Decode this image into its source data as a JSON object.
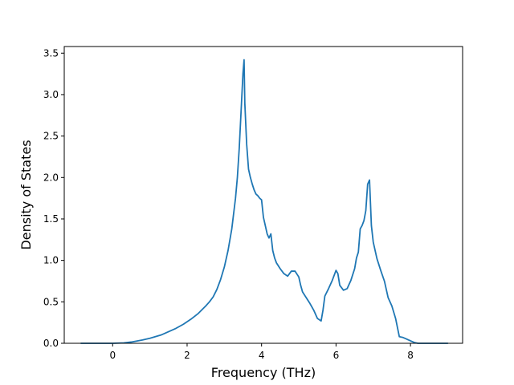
{
  "chart_data": {
    "type": "line",
    "title": "",
    "xlabel": "Frequency (THz)",
    "ylabel": "Density of States",
    "xlim": [
      -1.3,
      9.4
    ],
    "ylim": [
      0,
      3.58
    ],
    "xticks": [
      0,
      2,
      4,
      6,
      8
    ],
    "yticks": [
      0.0,
      0.5,
      1.0,
      1.5,
      2.0,
      2.5,
      3.0,
      3.5
    ],
    "xtick_labels": [
      "0",
      "2",
      "4",
      "6",
      "8"
    ],
    "ytick_labels": [
      "0.0",
      "0.5",
      "1.0",
      "1.5",
      "2.0",
      "2.5",
      "3.0",
      "3.5"
    ],
    "grid": false,
    "series": [
      {
        "color": "#1f77b4",
        "x": [
          -0.85,
          -0.5,
          0.0,
          0.3,
          0.5,
          0.8,
          1.0,
          1.3,
          1.5,
          1.7,
          1.9,
          2.1,
          2.3,
          2.5,
          2.6,
          2.7,
          2.8,
          2.9,
          3.0,
          3.1,
          3.2,
          3.3,
          3.35,
          3.4,
          3.45,
          3.5,
          3.53,
          3.55,
          3.6,
          3.65,
          3.7,
          3.75,
          3.8,
          3.85,
          3.9,
          3.95,
          4.0,
          4.05,
          4.1,
          4.15,
          4.2,
          4.25,
          4.3,
          4.35,
          4.4,
          4.5,
          4.6,
          4.7,
          4.8,
          4.9,
          5.0,
          5.05,
          5.1,
          5.2,
          5.3,
          5.4,
          5.5,
          5.6,
          5.65,
          5.7,
          5.8,
          5.9,
          6.0,
          6.05,
          6.1,
          6.2,
          6.3,
          6.4,
          6.5,
          6.55,
          6.6,
          6.65,
          6.7,
          6.75,
          6.8,
          6.85,
          6.9,
          6.95,
          7.0,
          7.1,
          7.2,
          7.3,
          7.4,
          7.5,
          7.6,
          7.7,
          7.8,
          7.9,
          8.0,
          8.1,
          8.2,
          8.5,
          9.0
        ],
        "y": [
          0.0,
          0.0,
          0.0,
          0.005,
          0.015,
          0.04,
          0.06,
          0.1,
          0.14,
          0.18,
          0.23,
          0.29,
          0.36,
          0.45,
          0.5,
          0.56,
          0.65,
          0.77,
          0.92,
          1.12,
          1.38,
          1.75,
          2.0,
          2.35,
          2.8,
          3.25,
          3.42,
          2.9,
          2.4,
          2.1,
          2.0,
          1.92,
          1.85,
          1.8,
          1.78,
          1.75,
          1.73,
          1.52,
          1.42,
          1.32,
          1.27,
          1.32,
          1.12,
          1.03,
          0.97,
          0.9,
          0.84,
          0.81,
          0.87,
          0.87,
          0.8,
          0.7,
          0.62,
          0.55,
          0.48,
          0.4,
          0.3,
          0.27,
          0.4,
          0.57,
          0.66,
          0.76,
          0.88,
          0.84,
          0.7,
          0.64,
          0.66,
          0.76,
          0.9,
          1.03,
          1.1,
          1.38,
          1.42,
          1.48,
          1.6,
          1.92,
          1.97,
          1.42,
          1.22,
          1.02,
          0.88,
          0.75,
          0.55,
          0.45,
          0.3,
          0.08,
          0.07,
          0.05,
          0.03,
          0.01,
          0.0,
          0.0,
          0.0
        ]
      }
    ]
  }
}
